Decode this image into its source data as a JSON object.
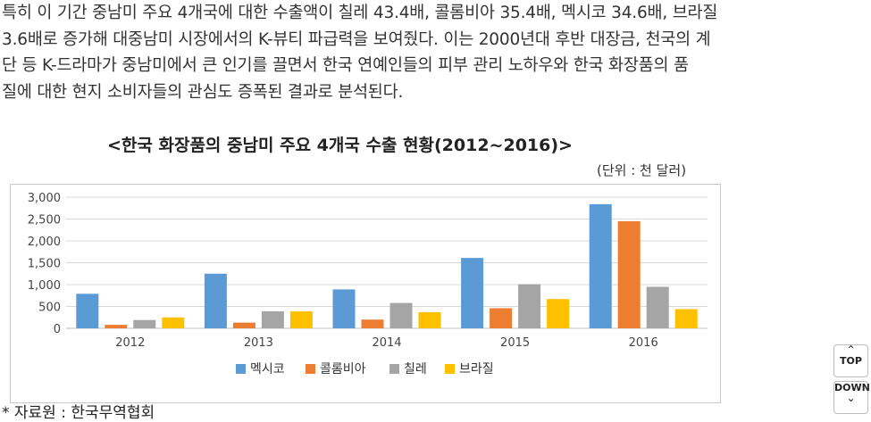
{
  "article": {
    "lines": [
      "특히 이 기간 중남미 주요 4개국에 대한 수출액이 칠레 43.4배, 콜롬비아 35.4배, 멕시코 34.6배, 브라질",
      "3.6배로 증가해 대중남미 시장에서의 K-뷰티 파급력을 보여줬다. 이는 2000년대 후반 대장금, 천국의 계",
      "단 등 K-드라마가 중남미에서 큰 인기를 끌면서 한국 연예인들의 피부 관리 노하우와 한국 화장품의 품",
      "질에 대한 현지 소비자들의 관심도 증폭된 결과로 분석된다."
    ]
  },
  "chart_data": {
    "type": "bar",
    "title": "<한국 화장품의 중남미 주요 4개국 수출 현황(2012~2016)>",
    "unit": "(단위 : 천 달러)",
    "categories": [
      "2012",
      "2013",
      "2014",
      "2015",
      "2016"
    ],
    "series": [
      {
        "name": "멕시코",
        "color": "#5b9bd5",
        "values": [
          790,
          1250,
          890,
          1610,
          2840
        ]
      },
      {
        "name": "콜롬비아",
        "color": "#ed7d31",
        "values": [
          80,
          130,
          200,
          460,
          2450
        ]
      },
      {
        "name": "칠레",
        "color": "#a5a5a5",
        "values": [
          190,
          390,
          580,
          1010,
          950
        ]
      },
      {
        "name": "브라질",
        "color": "#ffc000",
        "values": [
          250,
          390,
          370,
          670,
          440
        ]
      }
    ],
    "ylim": [
      0,
      3000
    ],
    "yticks": [
      0,
      500,
      1000,
      1500,
      2000,
      2500,
      3000
    ],
    "ytick_labels": [
      "0",
      "500",
      "1,000",
      "1,500",
      "2,000",
      "2,500",
      "3,000"
    ],
    "legend_position": "bottom",
    "grid": true
  },
  "source": "* 자료원 : 한국무역협회",
  "nav": {
    "top_label": "TOP",
    "down_label": "DOWN",
    "up_icon": "chevron-up-icon",
    "down_icon": "chevron-down-icon"
  }
}
